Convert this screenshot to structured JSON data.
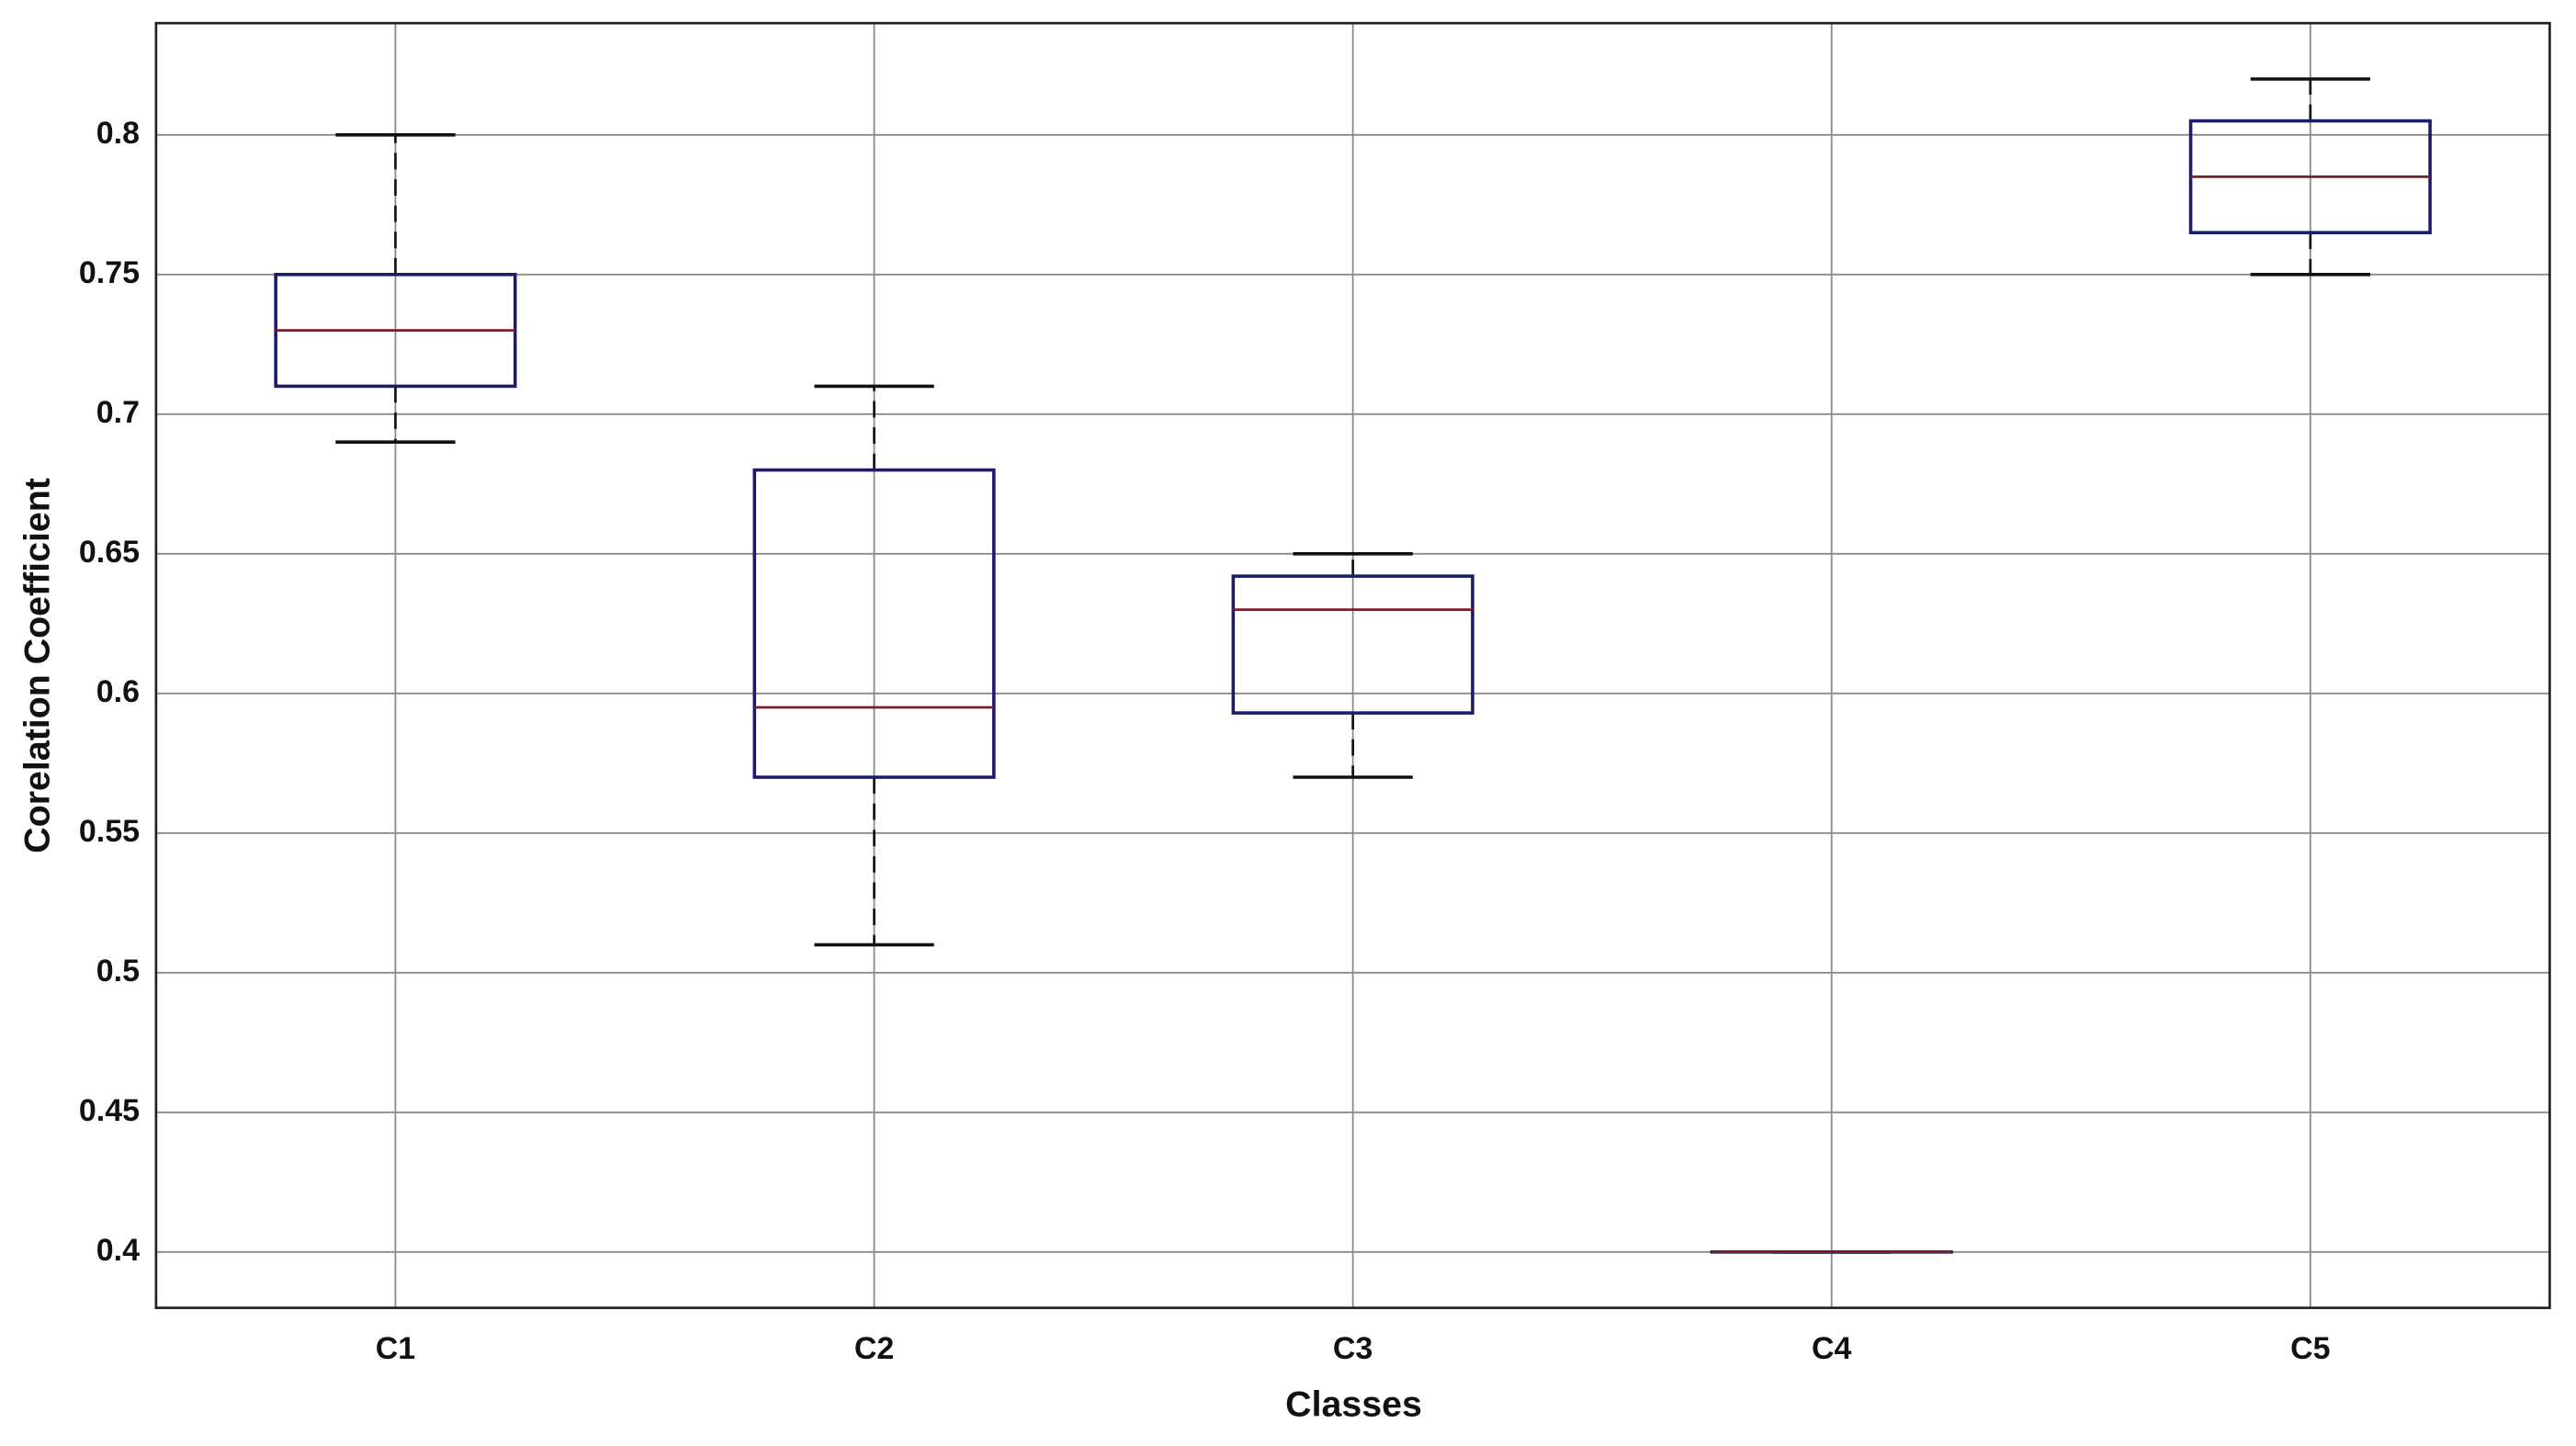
{
  "chart_data": {
    "type": "box",
    "xlabel": "Classes",
    "ylabel": "Corelation Coefficient",
    "categories": [
      "C1",
      "C2",
      "C3",
      "C4",
      "C5"
    ],
    "min": [
      0.69,
      0.51,
      0.57,
      0.4,
      0.75
    ],
    "q1": [
      0.71,
      0.57,
      0.593,
      0.4,
      0.765
    ],
    "median": [
      0.73,
      0.595,
      0.63,
      0.4,
      0.785
    ],
    "q3": [
      0.75,
      0.68,
      0.642,
      0.4,
      0.805
    ],
    "max": [
      0.8,
      0.71,
      0.65,
      0.4,
      0.82
    ],
    "box_color": "#1c1c6b",
    "median_color": "#7a1f2b",
    "whisker_color": "#111111",
    "ylim": [
      0.38,
      0.84
    ],
    "yticks": [
      0.4,
      0.45,
      0.5,
      0.55,
      0.6,
      0.65,
      0.7,
      0.75,
      0.8
    ],
    "grid": true
  }
}
